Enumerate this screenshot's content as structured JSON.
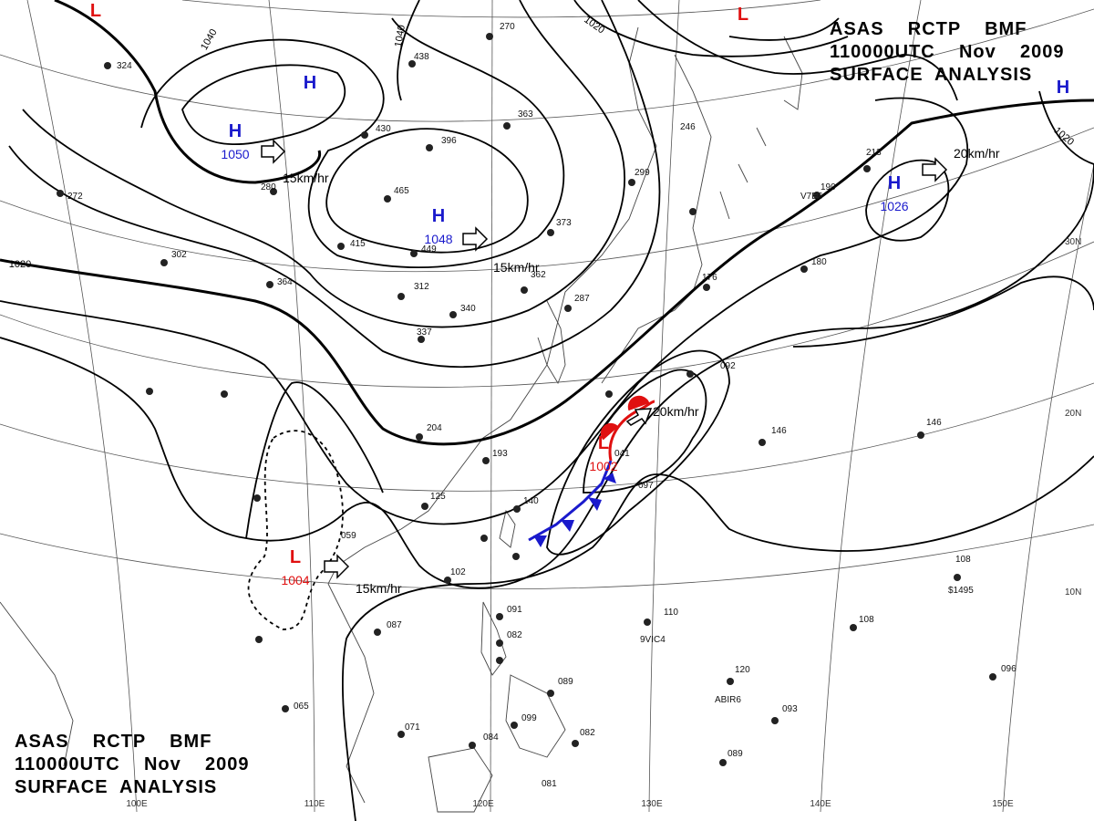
{
  "header": {
    "line1": "ASAS    RCTP    BMF",
    "line2": "110000UTC    Nov    2009",
    "line3": "SURFACE  ANALYSIS"
  },
  "footer": {
    "line1": "ASAS    RCTP    BMF",
    "line2": "110000UTC    Nov    2009",
    "line3": "SURFACE  ANALYSIS"
  },
  "pressure_centers": [
    {
      "type": "H",
      "label": "H",
      "value": "1050",
      "color": "#1a1acc"
    },
    {
      "type": "H",
      "label": "H",
      "value": "1048",
      "color": "#1a1acc"
    },
    {
      "type": "H",
      "label": "H",
      "value": "1026",
      "color": "#1a1acc"
    },
    {
      "type": "L",
      "label": "L",
      "value": "1002",
      "color": "#e01010"
    },
    {
      "type": "L",
      "label": "L",
      "value": "1004",
      "color": "#e01010"
    },
    {
      "type": "H",
      "label": "H",
      "value": "",
      "color": "#1a1acc"
    },
    {
      "type": "H",
      "label": "H",
      "value": "",
      "color": "#1a1acc"
    },
    {
      "type": "L",
      "label": "L",
      "value": "",
      "color": "#e01010"
    },
    {
      "type": "L",
      "label": "L",
      "value": "",
      "color": "#e01010"
    }
  ],
  "isobar_labels": [
    "1040",
    "1040",
    "1020",
    "1020",
    "1020"
  ],
  "motion_labels": [
    "15km/hr",
    "15km/hr",
    "20km/hr",
    "20km/hr",
    "15km/hr"
  ],
  "grid_labels": {
    "lon": [
      "100E",
      "110E",
      "120E",
      "130E",
      "140E",
      "150E"
    ],
    "lat": [
      "30N",
      "20N",
      "10N"
    ]
  },
  "station_codes": [
    {
      "text": "324",
      "c": 0
    },
    {
      "text": "272",
      "c": 0
    },
    {
      "text": "302",
      "c": 0
    },
    {
      "text": "364",
      "c": 0
    },
    {
      "text": "280",
      "c": 0
    },
    {
      "text": "415",
      "c": 0
    },
    {
      "text": "465",
      "c": 0
    },
    {
      "text": "449",
      "c": 0
    },
    {
      "text": "430",
      "c": 0
    },
    {
      "text": "396",
      "c": 0
    },
    {
      "text": "438",
      "c": 0
    },
    {
      "text": "270",
      "c": 0
    },
    {
      "text": "363",
      "c": 0
    },
    {
      "text": "299",
      "c": 0
    },
    {
      "text": "373",
      "c": 0
    },
    {
      "text": "362",
      "c": 0
    },
    {
      "text": "340",
      "c": 0
    },
    {
      "text": "312",
      "c": 0
    },
    {
      "text": "337",
      "c": 0
    },
    {
      "text": "287",
      "c": 0
    },
    {
      "text": "246",
      "c": 0
    },
    {
      "text": "213",
      "c": 0
    },
    {
      "text": "190",
      "c": 0
    },
    {
      "text": "180",
      "c": 0
    },
    {
      "text": "176",
      "c": 0
    },
    {
      "text": "092",
      "c": 0
    },
    {
      "text": "146",
      "c": 0
    },
    {
      "text": "146",
      "c": 0
    },
    {
      "text": "204",
      "c": 0
    },
    {
      "text": "193",
      "c": 0
    },
    {
      "text": "125",
      "c": 0
    },
    {
      "text": "140",
      "c": 0
    },
    {
      "text": "041",
      "c": 0
    },
    {
      "text": "097",
      "c": 0
    },
    {
      "text": "059",
      "c": 0
    },
    {
      "text": "102",
      "c": 0
    },
    {
      "text": "087",
      "c": 0
    },
    {
      "text": "110",
      "c": 0
    },
    {
      "text": "108",
      "c": 0
    },
    {
      "text": "108",
      "c": 0
    },
    {
      "text": "091",
      "c": 0
    },
    {
      "text": "082",
      "c": 0
    },
    {
      "text": "120",
      "c": 0
    },
    {
      "text": "096",
      "c": 0
    },
    {
      "text": "093",
      "c": 0
    },
    {
      "text": "089",
      "c": 0
    },
    {
      "text": "065",
      "c": 0
    },
    {
      "text": "071",
      "c": 0
    },
    {
      "text": "084",
      "c": 0
    },
    {
      "text": "099",
      "c": 0
    },
    {
      "text": "082",
      "c": 0
    },
    {
      "text": "081",
      "c": 0
    },
    {
      "text": "089",
      "c": 0
    },
    {
      "text": "V7E6",
      "c": 0
    },
    {
      "text": "9VIC4",
      "c": 0
    },
    {
      "text": "ABIR6",
      "c": 0
    },
    {
      "text": "$1495",
      "c": 0
    }
  ],
  "colors": {
    "isobar": "#000000",
    "grid": "#555555",
    "coast": "#444444",
    "high": "#1a1acc",
    "low": "#e01010",
    "cold_front": "#1a1acc",
    "warm_front": "#e01010"
  }
}
